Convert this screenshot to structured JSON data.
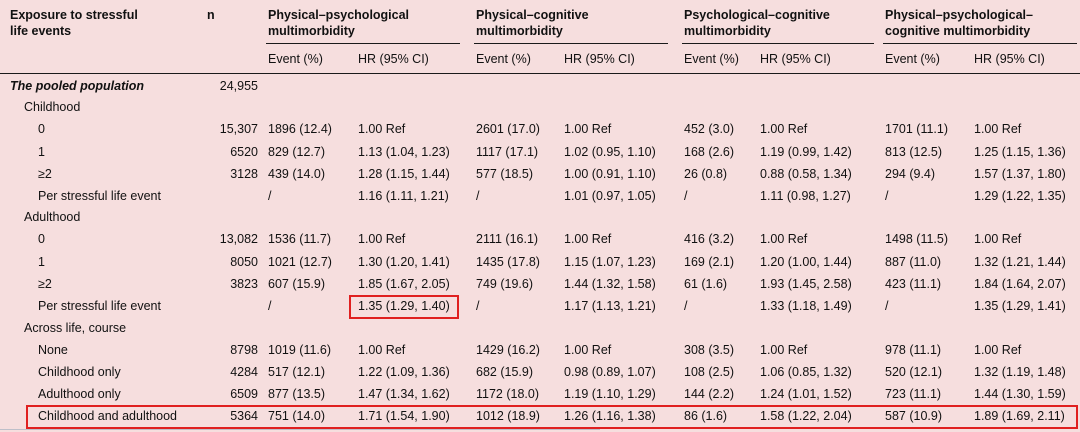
{
  "table": {
    "headers": {
      "exposure": "Exposure to stressful\nlife events",
      "n": "n",
      "groups": [
        "Physical–psychological\nmultimorbidity",
        "Physical–cognitive\nmultimorbidity",
        "Psychological–cognitive\nmultimorbidity",
        "Physical–psychological–\ncognitive multimorbidity"
      ],
      "sub_event": "Event (%)",
      "sub_hr": "HR (95% CI)"
    },
    "rows": [
      {
        "label": "The pooled population",
        "n": "24,955",
        "cells": [
          "",
          "",
          "",
          "",
          "",
          "",
          "",
          ""
        ]
      },
      {
        "label": "Childhood",
        "n": "",
        "cells": [
          "",
          "",
          "",
          "",
          "",
          "",
          "",
          ""
        ]
      },
      {
        "label": "0",
        "n": "15,307",
        "cells": [
          "1896 (12.4)",
          "1.00 Ref",
          "2601 (17.0)",
          "1.00 Ref",
          "452 (3.0)",
          "1.00 Ref",
          "1701 (11.1)",
          "1.00 Ref"
        ]
      },
      {
        "label": "1",
        "n": "6520",
        "cells": [
          "829 (12.7)",
          "1.13 (1.04, 1.23)",
          "1117 (17.1)",
          "1.02 (0.95, 1.10)",
          "168 (2.6)",
          "1.19 (0.99, 1.42)",
          "813 (12.5)",
          "1.25 (1.15, 1.36)"
        ]
      },
      {
        "label": "≥2",
        "n": "3128",
        "cells": [
          "439 (14.0)",
          "1.28 (1.15, 1.44)",
          "577 (18.5)",
          "1.00 (0.91, 1.10)",
          "26 (0.8)",
          "0.88 (0.58, 1.34)",
          "294 (9.4)",
          "1.57 (1.37, 1.80)"
        ]
      },
      {
        "label": "Per stressful life event",
        "n": "",
        "cells": [
          "/",
          "1.16 (1.11, 1.21)",
          "/",
          "1.01 (0.97, 1.05)",
          "/",
          "1.11 (0.98, 1.27)",
          "/",
          "1.29 (1.22, 1.35)"
        ]
      },
      {
        "label": "Adulthood",
        "n": "",
        "cells": [
          "",
          "",
          "",
          "",
          "",
          "",
          "",
          ""
        ]
      },
      {
        "label": "0",
        "n": "13,082",
        "cells": [
          "1536 (11.7)",
          "1.00 Ref",
          "2111 (16.1)",
          "1.00 Ref",
          "416 (3.2)",
          "1.00 Ref",
          "1498 (11.5)",
          "1.00 Ref"
        ]
      },
      {
        "label": "1",
        "n": "8050",
        "cells": [
          "1021 (12.7)",
          "1.30 (1.20, 1.41)",
          "1435 (17.8)",
          "1.15 (1.07, 1.23)",
          "169 (2.1)",
          "1.20 (1.00, 1.44)",
          "887 (11.0)",
          "1.32 (1.21, 1.44)"
        ]
      },
      {
        "label": "≥2",
        "n": "3823",
        "cells": [
          "607 (15.9)",
          "1.85 (1.67, 2.05)",
          "749 (19.6)",
          "1.44 (1.32, 1.58)",
          "61 (1.6)",
          "1.93 (1.45, 2.58)",
          "423 (11.1)",
          "1.84 (1.64, 2.07)"
        ]
      },
      {
        "label": "Per stressful life event",
        "n": "",
        "cells": [
          "/",
          "1.35 (1.29, 1.40)",
          "/",
          "1.17 (1.13, 1.21)",
          "/",
          "1.33 (1.18, 1.49)",
          "/",
          "1.35 (1.29, 1.41)"
        ]
      },
      {
        "label": "Across life, course",
        "n": "",
        "cells": [
          "",
          "",
          "",
          "",
          "",
          "",
          "",
          ""
        ]
      },
      {
        "label": "None",
        "n": "8798",
        "cells": [
          "1019 (11.6)",
          "1.00 Ref",
          "1429 (16.2)",
          "1.00 Ref",
          "308 (3.5)",
          "1.00 Ref",
          "978 (11.1)",
          "1.00 Ref"
        ]
      },
      {
        "label": "Childhood only",
        "n": "4284",
        "cells": [
          "517 (12.1)",
          "1.22 (1.09, 1.36)",
          "682 (15.9)",
          "0.98 (0.89, 1.07)",
          "108 (2.5)",
          "1.06 (0.85, 1.32)",
          "520 (12.1)",
          "1.32 (1.19, 1.48)"
        ]
      },
      {
        "label": "Adulthood only",
        "n": "6509",
        "cells": [
          "877 (13.5)",
          "1.47 (1.34, 1.62)",
          "1172 (18.0)",
          "1.19 (1.10, 1.29)",
          "144 (2.2)",
          "1.24 (1.01, 1.52)",
          "723 (11.1)",
          "1.44 (1.30, 1.59)"
        ]
      },
      {
        "label": "Childhood and adulthood",
        "n": "5364",
        "cells": [
          "751 (14.0)",
          "1.71 (1.54, 1.90)",
          "1012 (18.9)",
          "1.26 (1.16, 1.38)",
          "86 (1.6)",
          "1.58 (1.22, 2.04)",
          "587 (10.9)",
          "1.89 (1.69, 2.11)"
        ]
      }
    ]
  },
  "colors": {
    "background": "#f6dede",
    "highlight": "#e02020",
    "text": "#111111"
  }
}
